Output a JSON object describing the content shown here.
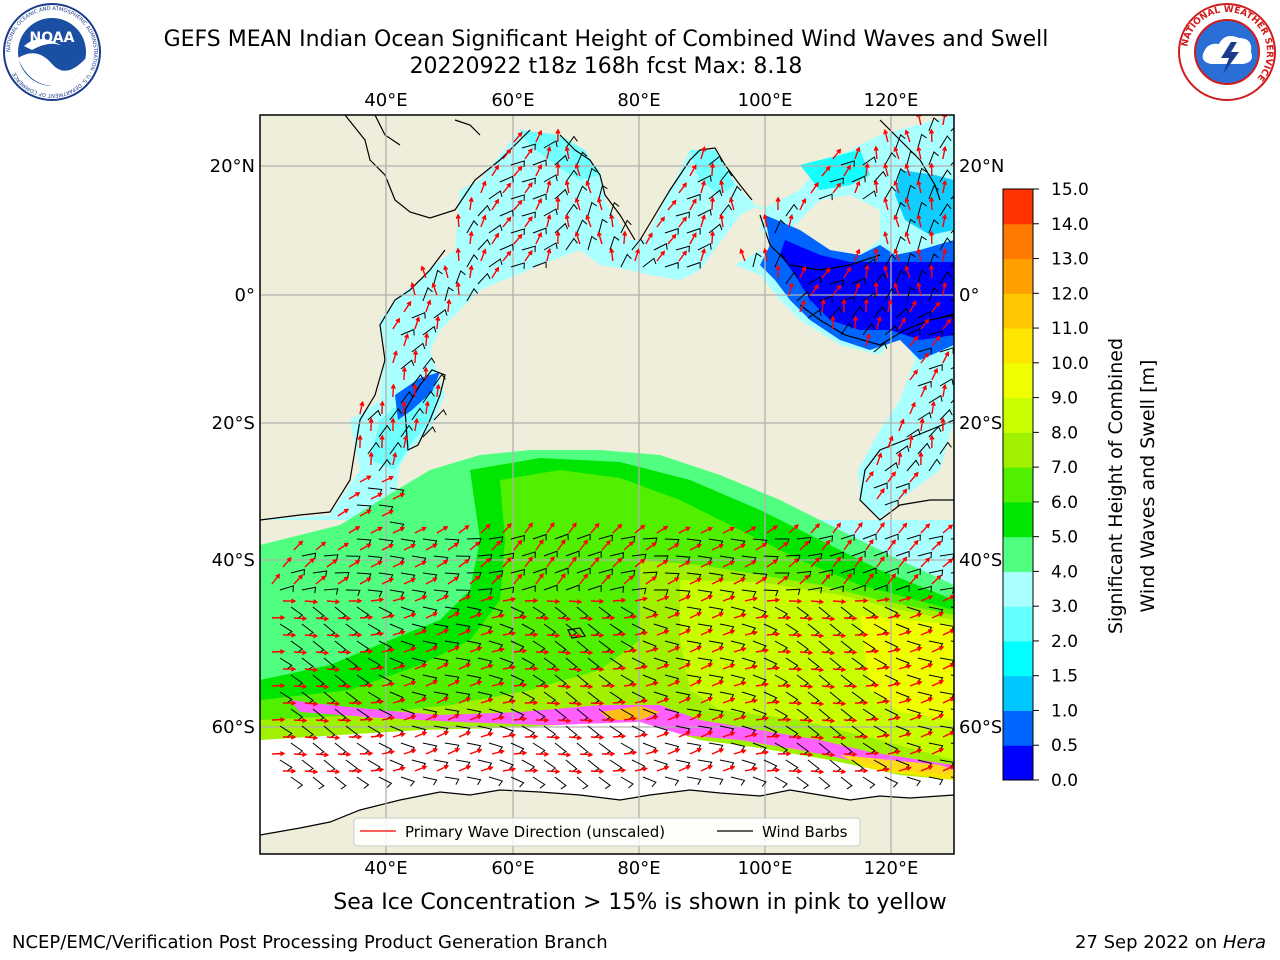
{
  "title": {
    "line1": "GEFS MEAN Indian Ocean Significant Height of Combined Wind Waves and Swell",
    "line2": "20220922 t18z 168h fcst   Max: 8.18"
  },
  "map": {
    "lon_ticks": [
      "40°E",
      "60°E",
      "80°E",
      "100°E",
      "120°E"
    ],
    "lat_ticks": [
      "20°N",
      "0°",
      "20°S",
      "40°S",
      "60°S"
    ],
    "legend": {
      "wave_direction": "Primary Wave Direction (unscaled)",
      "wind_barbs": "Wind Barbs"
    }
  },
  "colorbar": {
    "label": "Significant Height of Combined Wind Waves and Swell [m]",
    "label_line1": "Significant Height of Combined",
    "label_line2": "Wind Waves and Swell [m]",
    "ticks": [
      "0.0",
      "0.5",
      "1.0",
      "1.5",
      "2.0",
      "3.0",
      "4.0",
      "5.0",
      "6.0",
      "7.0",
      "8.0",
      "9.0",
      "10.0",
      "11.0",
      "12.0",
      "13.0",
      "14.0",
      "15.0"
    ],
    "colors": [
      "#0000ff",
      "#0064ff",
      "#00c8ff",
      "#00ffff",
      "#64ffff",
      "#aaffff",
      "#50ff80",
      "#00e600",
      "#50f000",
      "#a0f000",
      "#c8ff00",
      "#f0ff00",
      "#ffe600",
      "#ffc800",
      "#ffa000",
      "#ff7800",
      "#ff3200",
      "#ff0000"
    ]
  },
  "captions": {
    "ice": "Sea Ice Concentration > 15% is shown in pink to yellow",
    "footer_left": "NCEP/EMC/Verification Post Processing Product Generation Branch",
    "footer_date": "27 Sep 2022 on ",
    "footer_host": "Hera"
  },
  "logos": {
    "noaa_text": "NOAA",
    "noaa_ring": "NATIONAL OCEANIC AND ATMOSPHERIC ADMINISTRATION · U.S. DEPARTMENT OF COMMERCE",
    "nws_ring": "NATIONAL WEATHER SERVICE"
  }
}
